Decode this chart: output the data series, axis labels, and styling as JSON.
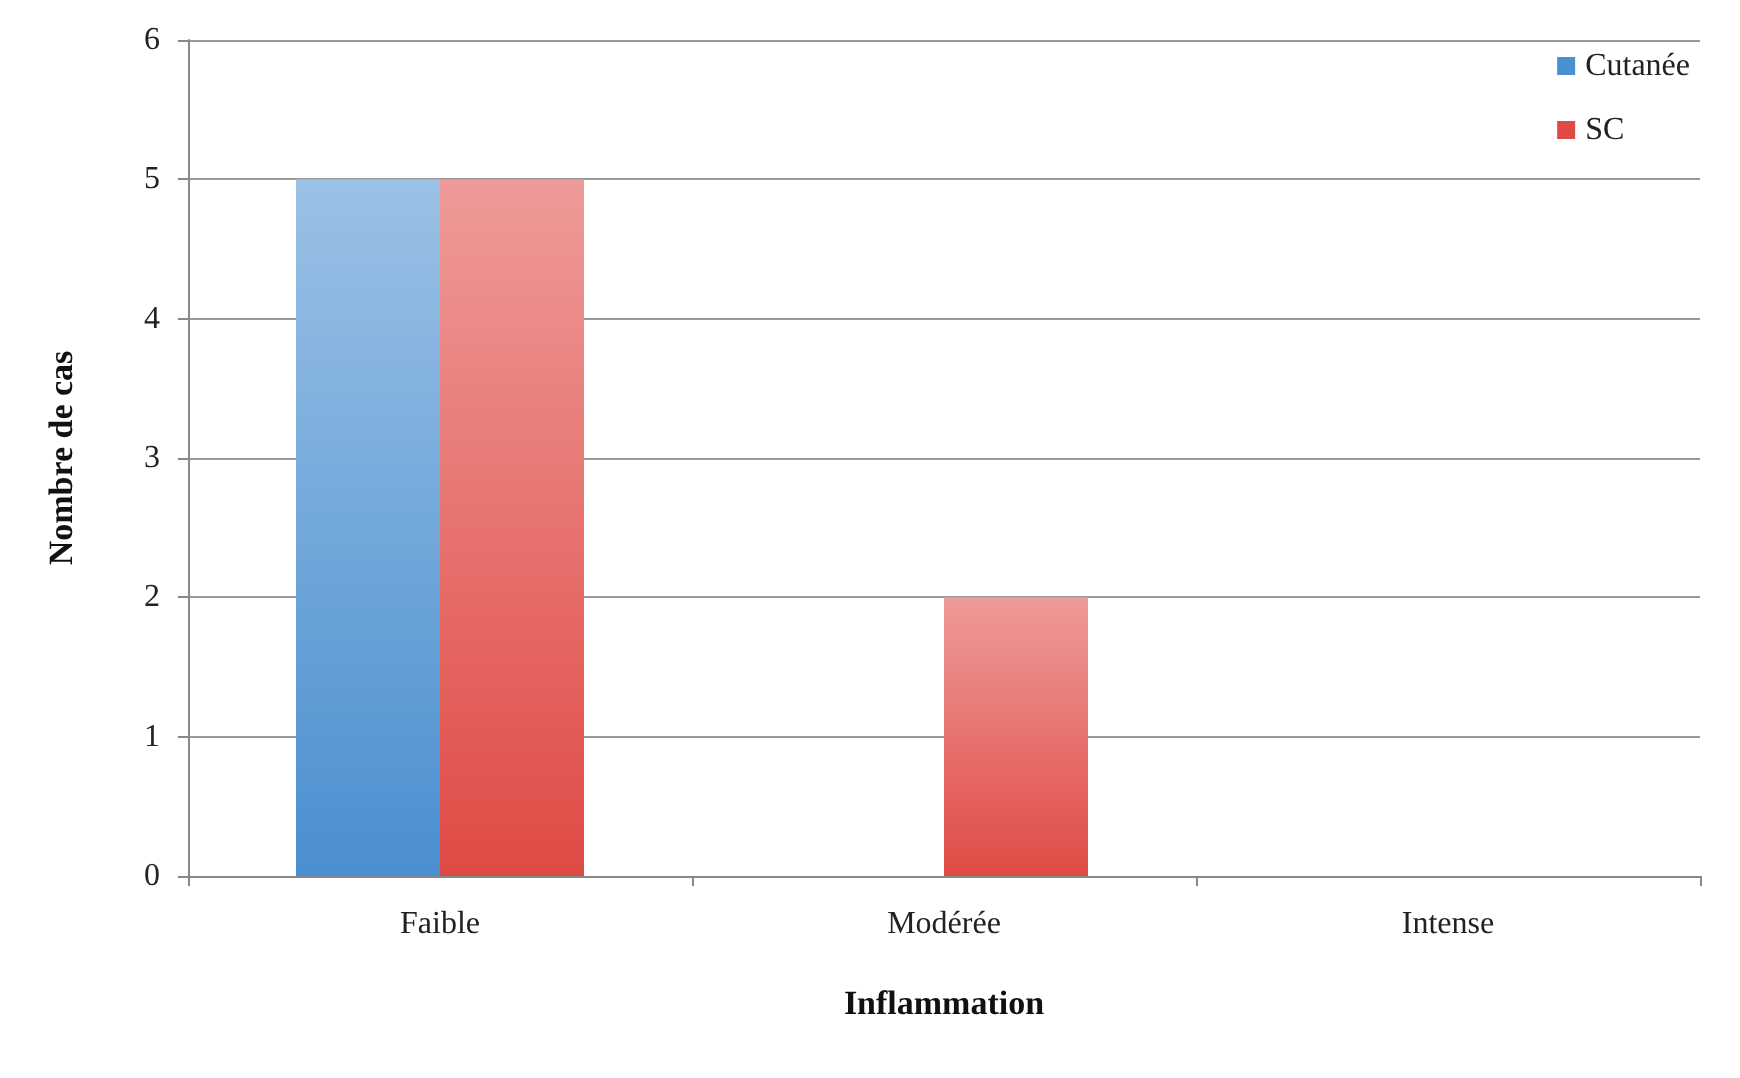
{
  "chart_data": {
    "type": "bar",
    "xlabel": "Inflammation",
    "ylabel": "Nombre de cas",
    "categories": [
      "Faible",
      "Modérée",
      "Intense"
    ],
    "series": [
      {
        "name": "Cutanée",
        "color": "#4a8fd0",
        "values": [
          5,
          0,
          0
        ]
      },
      {
        "name": "SC",
        "color": "#e04a45",
        "values": [
          5,
          2,
          0
        ]
      }
    ],
    "ylim": [
      0,
      6
    ],
    "yticks": [
      0,
      1,
      2,
      3,
      4,
      5,
      6
    ],
    "grid": "y",
    "legend": "top right"
  }
}
